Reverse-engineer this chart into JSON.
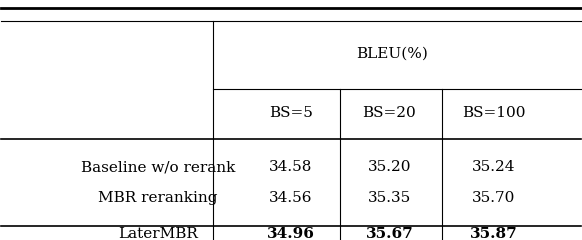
{
  "col_headers_top": "BLEU(%)",
  "col_headers": [
    "BS=5",
    "BS=20",
    "BS=100"
  ],
  "rows": [
    {
      "label": "Baseline w/o rerank",
      "values": [
        "34.58",
        "35.20",
        "35.24"
      ],
      "bold": false
    },
    {
      "label": "MBR reranking",
      "values": [
        "34.56",
        "35.35",
        "35.70"
      ],
      "bold": false
    },
    {
      "label": "LaterMBR",
      "values": [
        "34.96",
        "35.67",
        "35.87"
      ],
      "bold": true
    }
  ],
  "bg_color": "#ffffff",
  "text_color": "#000000",
  "font_size": 11,
  "header_font_size": 11
}
